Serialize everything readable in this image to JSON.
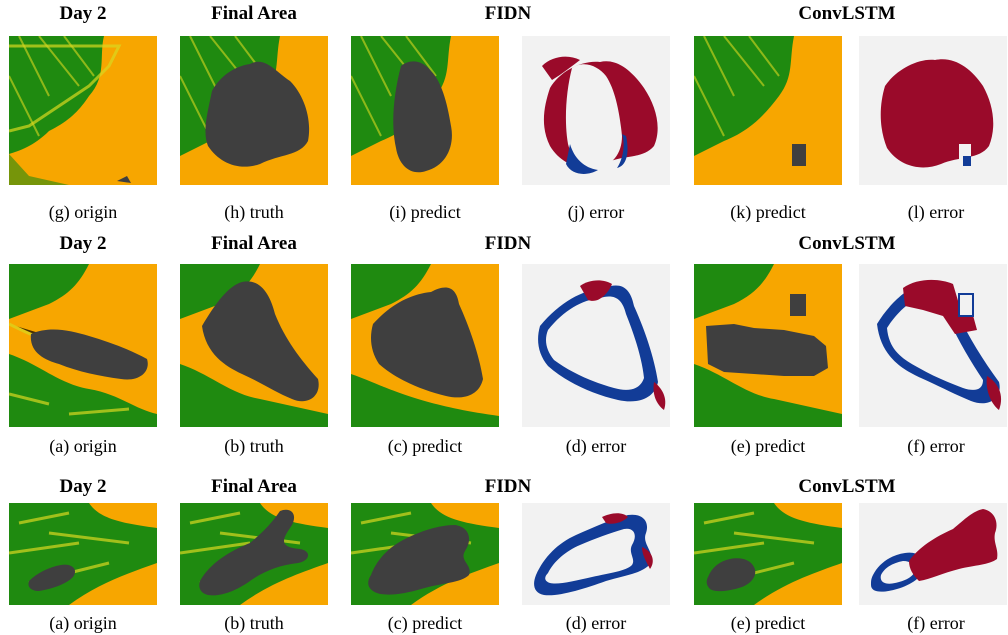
{
  "figure": {
    "rows": [
      {
        "headers": {
          "day": "Day 2",
          "final": "Final Area",
          "fidn": "FIDN",
          "convlstm": "ConvLSTM"
        },
        "captions": [
          "(g) origin",
          "(h) truth",
          "(i) predict",
          "(j) error",
          "(k) predict",
          "(l) error"
        ]
      },
      {
        "headers": {
          "day": "Day 2",
          "final": "Final Area",
          "fidn": "FIDN",
          "convlstm": "ConvLSTM"
        },
        "captions": [
          "(a) origin",
          "(b) truth",
          "(c) predict",
          "(d) error",
          "(e) predict",
          "(f) error"
        ]
      },
      {
        "headers": {
          "day": "Day 2",
          "final": "Final Area",
          "fidn": "FIDN",
          "convlstm": "ConvLSTM"
        },
        "captions": [
          "(a) origin",
          "(b) truth",
          "(c) predict",
          "(d) error",
          "(e) predict",
          "(f) error"
        ]
      }
    ]
  },
  "colors": {
    "vegetation": "#1f8a10",
    "dry_land": "#f7a600",
    "sparse": "#d8d820",
    "burned": "#3f3f3f",
    "error_background": "#f2f2f2",
    "error_over": "#9a0a2a",
    "error_under": "#123c97"
  }
}
